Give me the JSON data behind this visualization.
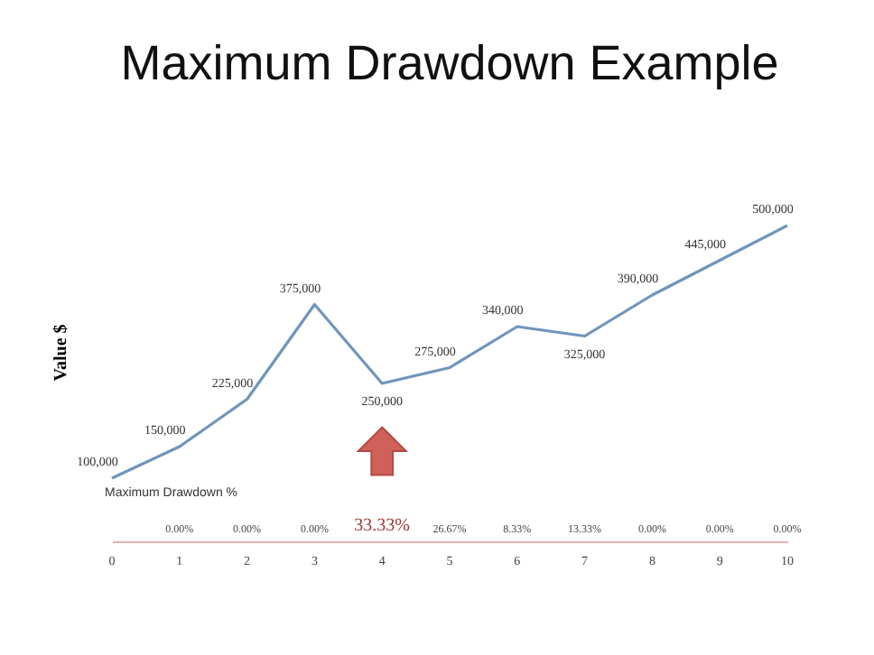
{
  "chart_data": {
    "type": "line",
    "title": "Maximum Drawdown Example",
    "ylabel": "Value $",
    "x": [
      0,
      1,
      2,
      3,
      4,
      5,
      6,
      7,
      8,
      9,
      10
    ],
    "series": [
      {
        "color": "#7095bb",
        "values": [
          100000,
          150000,
          225000,
          375000,
          250000,
          275000,
          340000,
          325000,
          390000,
          445000,
          500000
        ],
        "value_labels": [
          "100,000",
          "150,000",
          "225,000",
          "375,000",
          "250,000",
          "275,000",
          "340,000",
          "325,000",
          "390,000",
          "445,000",
          "500,000"
        ]
      }
    ],
    "xlim": [
      0,
      10
    ],
    "xticks": [
      0,
      1,
      2,
      3,
      4,
      5,
      6,
      7,
      8,
      9,
      10
    ],
    "tick_labels": "x",
    "grid": false,
    "annotations": [
      "Maximum Drawdown %",
      "0.00%",
      "0.00%",
      "0.00%",
      "33.33%",
      "26.67%",
      "8.33%",
      "13.33%",
      "0.00%",
      "0.00%",
      "0.00%"
    ]
  }
}
